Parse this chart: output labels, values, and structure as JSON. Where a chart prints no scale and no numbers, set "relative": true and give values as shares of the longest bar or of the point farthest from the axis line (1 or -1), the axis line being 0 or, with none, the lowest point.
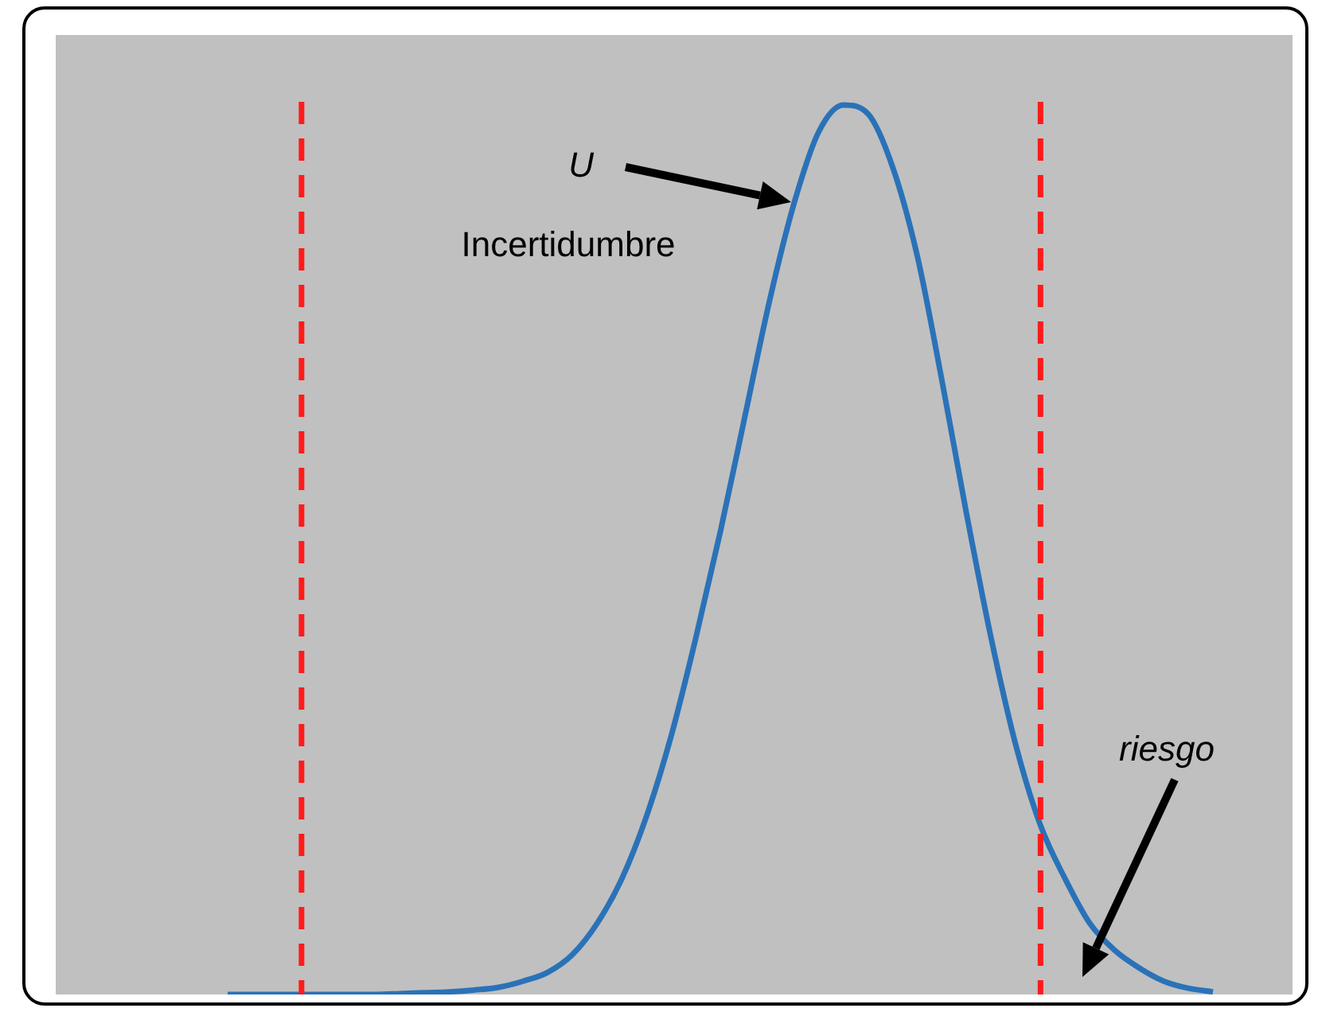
{
  "chart_data": {
    "type": "line",
    "relative": true,
    "legend": false,
    "marker": "none",
    "line_style": "solid",
    "categories": [
      null,
      null,
      null,
      null,
      null,
      null,
      null,
      null,
      null,
      null,
      null,
      null,
      null,
      null,
      null,
      null,
      null,
      null,
      null,
      null,
      null,
      null,
      null,
      null,
      null,
      null,
      null,
      null,
      null,
      null,
      null,
      null,
      null,
      null,
      null,
      null,
      null,
      null,
      null,
      null,
      null
    ],
    "series": [
      {
        "color": "#2a72b8",
        "values": [
          0,
          0,
          0,
          0,
          0,
          0,
          0,
          0.001,
          0.002,
          0.003,
          0.005,
          0.008,
          0.015,
          0.025,
          0.045,
          0.08,
          0.13,
          0.2,
          0.29,
          0.4,
          0.52,
          0.65,
          0.78,
          0.89,
          0.97,
          1,
          0.99,
          0.93,
          0.83,
          0.69,
          0.54,
          0.4,
          0.28,
          0.19,
          0.13,
          0.08,
          0.05,
          0.03,
          0.015,
          0.007,
          0.003
        ]
      }
    ],
    "annotations": [
      "U",
      "Incertidumbre",
      "riesgo"
    ]
  }
}
